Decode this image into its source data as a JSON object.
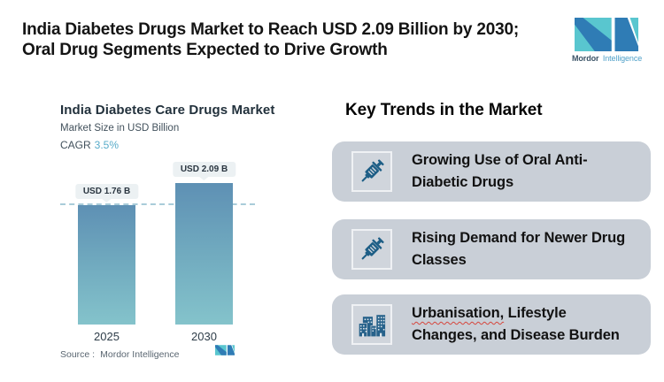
{
  "header": {
    "title_line1": "India Diabetes Drugs Market to Reach USD 2.09 Billion by 2030;",
    "title_line2": "Oral Drug Segments Expected to Drive Growth",
    "logo": {
      "brand_bold": "Mordor",
      "brand_light": "Intelligence"
    }
  },
  "chart": {
    "title": "India Diabetes Care Drugs Market",
    "subtitle": "Market Size in USD Billion",
    "cagr_label": "CAGR",
    "cagr_value": "3.5%",
    "source_label": "Source :",
    "source_value": "Mordor Intelligence",
    "bars": [
      {
        "year": "2025",
        "label": "USD 1.76 B"
      },
      {
        "year": "2030",
        "label": "USD 2.09 B"
      }
    ]
  },
  "chart_data": {
    "type": "bar",
    "title": "India Diabetes Care Drugs Market",
    "subtitle": "Market Size in USD Billion",
    "cagr": "3.5%",
    "unit": "USD Billion",
    "categories": [
      "2025",
      "2030"
    ],
    "values": [
      1.76,
      2.09
    ],
    "data_labels": [
      "USD 1.76 B",
      "USD 2.09 B"
    ],
    "reference_line": 1.76,
    "ylim": [
      0,
      2.09
    ],
    "grid": false,
    "legend": "none",
    "source": "Mordor Intelligence"
  },
  "trends": {
    "heading": "Key Trends in the Market",
    "cards": [
      {
        "icon": "syringe-icon",
        "line1": "Growing Use of Oral Anti-",
        "line2": "Diabetic Drugs"
      },
      {
        "icon": "syringe-icon",
        "line1": "Rising Demand for Newer Drug",
        "line2": "Classes"
      },
      {
        "icon": "buildings-icon",
        "word_underlined": "Urbanisation,",
        "line1_rest": " Lifestyle",
        "line2": "Changes, and Disease Burden"
      }
    ]
  },
  "colors": {
    "bar_top": "#5E90B4",
    "bar_bottom": "#84C3CB",
    "dashed_line": "#A9CCD9",
    "callout_bg": "#ECF1F3",
    "card_bg": "#C9CFD7",
    "icon_blue": "#1D5E86",
    "logo_teal": "#59C6CF",
    "logo_blue": "#2F7CB5",
    "cagr_accent": "#57ABC9"
  }
}
